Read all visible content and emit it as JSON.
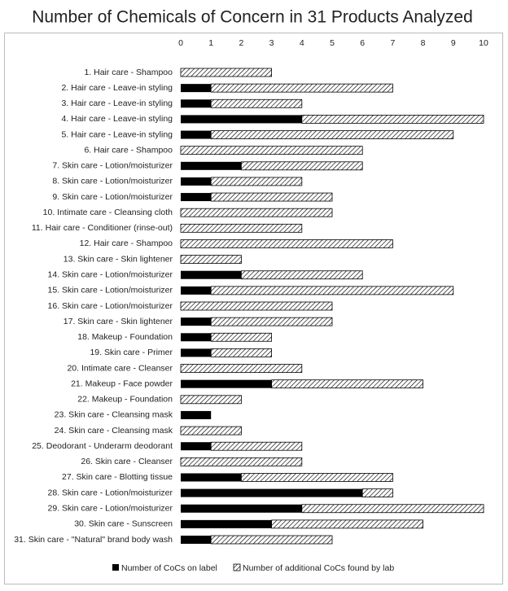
{
  "chart_data": {
    "type": "stacked-barh",
    "title": "Number of Chemicals of Concern in 31 Products Analyzed",
    "categories": [
      "1. Hair care - Shampoo",
      "2. Hair care - Leave-in styling",
      "3. Hair care - Leave-in styling",
      "4. Hair care - Leave-in styling",
      "5. Hair care - Leave-in styling",
      "6. Hair care - Shampoo",
      "7. Skin care - Lotion/moisturizer",
      "8. Skin care - Lotion/moisturizer",
      "9. Skin care - Lotion/moisturizer",
      "10. Intimate care - Cleansing cloth",
      "11. Hair care - Conditioner (rinse-out)",
      "12. Hair care - Shampoo",
      "13. Skin care - Skin lightener",
      "14. Skin care - Lotion/moisturizer",
      "15. Skin care - Lotion/moisturizer",
      "16. Skin care - Lotion/moisturizer",
      "17. Skin care - Skin lightener",
      "18. Makeup - Foundation",
      "19. Skin care - Primer",
      "20. Intimate care - Cleanser",
      "21. Makeup - Face powder",
      "22. Makeup - Foundation",
      "23. Skin care - Cleansing mask",
      "24. Skin care - Cleansing mask",
      "25. Deodorant - Underarm deodorant",
      "26. Skin care - Cleanser",
      "27. Skin care - Blotting tissue",
      "28. Skin care - Lotion/moisturizer",
      "29. Skin care - Lotion/moisturizer",
      "30. Skin care - Sunscreen",
      "31. Skin care - \"Natural\" brand body wash"
    ],
    "series": [
      {
        "name": "Number of CoCs on label",
        "color": "#000000",
        "hatch": false,
        "values": [
          0,
          1,
          1,
          4,
          1,
          0,
          2,
          1,
          1,
          0,
          0,
          0,
          0,
          2,
          1,
          0,
          1,
          1,
          1,
          0,
          3,
          0,
          1,
          0,
          1,
          0,
          2,
          6,
          4,
          3,
          1
        ]
      },
      {
        "name": "Number of additional CoCs found by lab",
        "color": "#000000",
        "hatch": true,
        "values": [
          3,
          6,
          3,
          6,
          8,
          6,
          4,
          3,
          4,
          5,
          4,
          7,
          2,
          4,
          8,
          5,
          4,
          2,
          2,
          4,
          5,
          2,
          0,
          2,
          3,
          4,
          5,
          1,
          6,
          5,
          4
        ]
      }
    ],
    "xlim": [
      0,
      10
    ],
    "xticks": [
      0,
      1,
      2,
      3,
      4,
      5,
      6,
      7,
      8,
      9,
      10
    ],
    "legend": "bottom"
  }
}
